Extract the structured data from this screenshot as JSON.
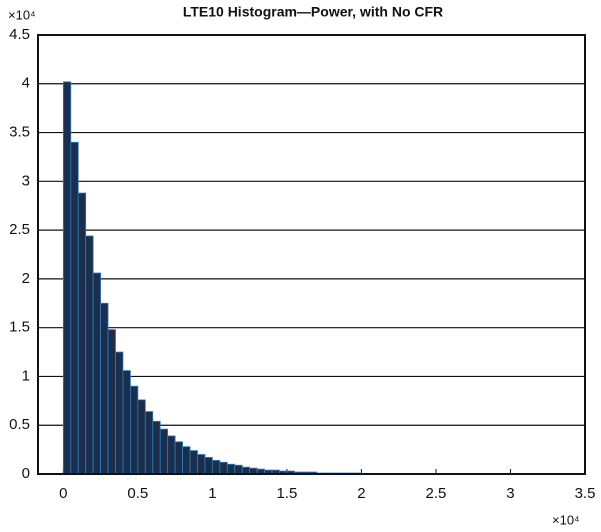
{
  "chart_data": {
    "type": "histogram",
    "title": "LTE10 Histogram—Power, with No CFR",
    "y_multiplier": "×10⁴",
    "x_multiplier": "×10⁴",
    "bins": [
      0,
      0.05,
      0.1,
      0.15,
      0.2,
      0.25,
      0.3,
      0.35,
      0.4,
      0.45,
      0.5,
      0.55,
      0.6,
      0.65,
      0.7,
      0.75,
      0.8,
      0.85,
      0.9,
      0.95,
      1,
      1.05,
      1.1,
      1.15,
      1.2,
      1.25,
      1.3,
      1.35,
      1.4,
      1.45,
      1.5,
      1.55,
      1.6,
      1.65,
      1.7,
      1.75,
      1.8,
      1.85,
      1.9,
      1.95,
      2
    ],
    "values": [
      4.02,
      3.4,
      2.88,
      2.44,
      2.06,
      1.75,
      1.48,
      1.25,
      1.06,
      0.9,
      0.76,
      0.64,
      0.54,
      0.46,
      0.39,
      0.33,
      0.28,
      0.24,
      0.2,
      0.17,
      0.14,
      0.12,
      0.1,
      0.09,
      0.07,
      0.06,
      0.05,
      0.04,
      0.04,
      0.03,
      0.03,
      0.02,
      0.02,
      0.02,
      0.01,
      0.01,
      0.01,
      0.01,
      0.01,
      0.01
    ],
    "color": "#1b2f4d",
    "edge_color": "#2e7bbf",
    "xlim": [
      -0.17,
      3.5
    ],
    "ylim": [
      0,
      4.5
    ],
    "xticks": [
      0,
      0.5,
      1,
      1.5,
      2,
      2.5,
      3,
      3.5
    ],
    "yticks": [
      0,
      0.5,
      1,
      1.5,
      2,
      2.5,
      3,
      3.5,
      4,
      4.5
    ],
    "grid": true
  }
}
